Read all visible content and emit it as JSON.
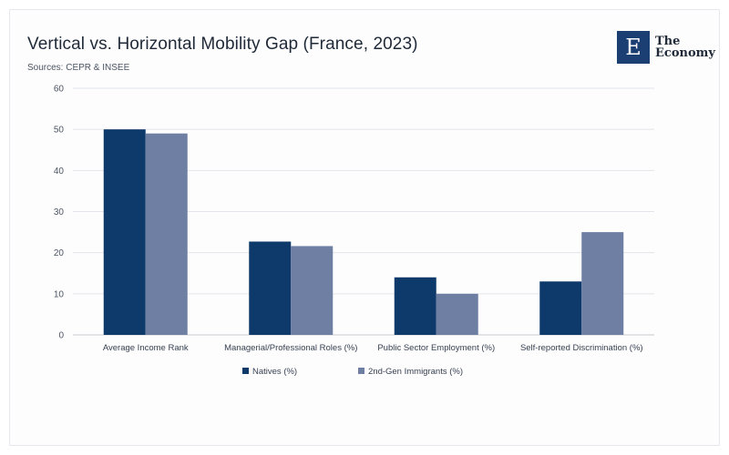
{
  "header": {
    "title": "Vertical vs. Horizontal Mobility Gap (France, 2023)",
    "sources": "Sources: CEPR & INSEE"
  },
  "logo": {
    "mark": "E",
    "line1": "The",
    "line2": "Economy",
    "color": "#1c3f73"
  },
  "chart_data": {
    "type": "bar",
    "categories": [
      "Average Income Rank",
      "Managerial/Professional Roles (%)",
      "Public Sector Employment (%)",
      "Self-reported Discrimination (%)"
    ],
    "series": [
      {
        "name": "Natives (%)",
        "values": [
          50,
          22.7,
          14,
          13
        ],
        "color": "#0e3a6b"
      },
      {
        "name": "2nd-Gen Immigrants (%)",
        "values": [
          49,
          21.6,
          10,
          25
        ],
        "color": "#6e7fa3"
      }
    ],
    "ylim": [
      0,
      60
    ],
    "yticks": [
      0,
      10,
      20,
      30,
      40,
      50,
      60
    ],
    "grid": true,
    "legend_position": "bottom"
  }
}
